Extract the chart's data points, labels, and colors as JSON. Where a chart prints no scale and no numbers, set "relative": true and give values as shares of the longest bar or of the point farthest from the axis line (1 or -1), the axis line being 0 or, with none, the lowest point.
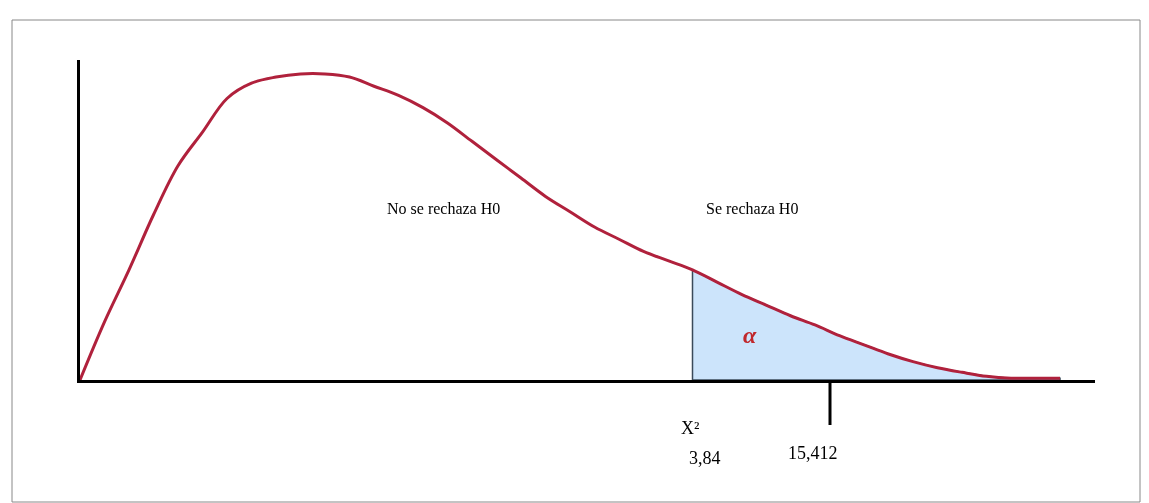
{
  "chart_data": {
    "type": "line",
    "relative": true,
    "categories": [
      null,
      null,
      null,
      null,
      null,
      null,
      null,
      null,
      null,
      null,
      null,
      null,
      null,
      null,
      null,
      null,
      null,
      null,
      null,
      null,
      null,
      null,
      null,
      null,
      null,
      null,
      null,
      null,
      null,
      null,
      null,
      null,
      null,
      null,
      null,
      null,
      null,
      null,
      null,
      null,
      null
    ],
    "series": [
      {
        "type": "area",
        "color": "#cce4fb",
        "values": [
          null,
          null,
          null,
          null,
          null,
          null,
          null,
          null,
          null,
          null,
          null,
          null,
          null,
          null,
          null,
          null,
          null,
          null,
          null,
          null,
          null,
          null,
          null,
          null,
          null,
          0.36,
          0.32,
          0.28,
          0.245,
          0.21,
          0.18,
          0.145,
          0.115,
          0.085,
          0.06,
          0.04,
          0.025,
          0.012,
          0.006,
          0.006,
          0.006
        ]
      },
      {
        "color": "#b0213c",
        "values": [
          0,
          0.19,
          0.36,
          0.54,
          0.7,
          0.81,
          0.92,
          0.97,
          0.99,
          1.0,
          1.0,
          0.99,
          0.96,
          0.93,
          0.89,
          0.84,
          0.78,
          0.72,
          0.66,
          0.6,
          0.55,
          0.5,
          0.46,
          0.42,
          0.39,
          0.36,
          0.32,
          0.28,
          0.245,
          0.21,
          0.18,
          0.145,
          0.115,
          0.085,
          0.06,
          0.04,
          0.025,
          0.012,
          0.006,
          0.006,
          0.006
        ]
      }
    ],
    "annotations": [
      "No se rechaza H0",
      "Se rechaza H0",
      "α",
      "X²",
      "3,84",
      "15,412"
    ]
  }
}
